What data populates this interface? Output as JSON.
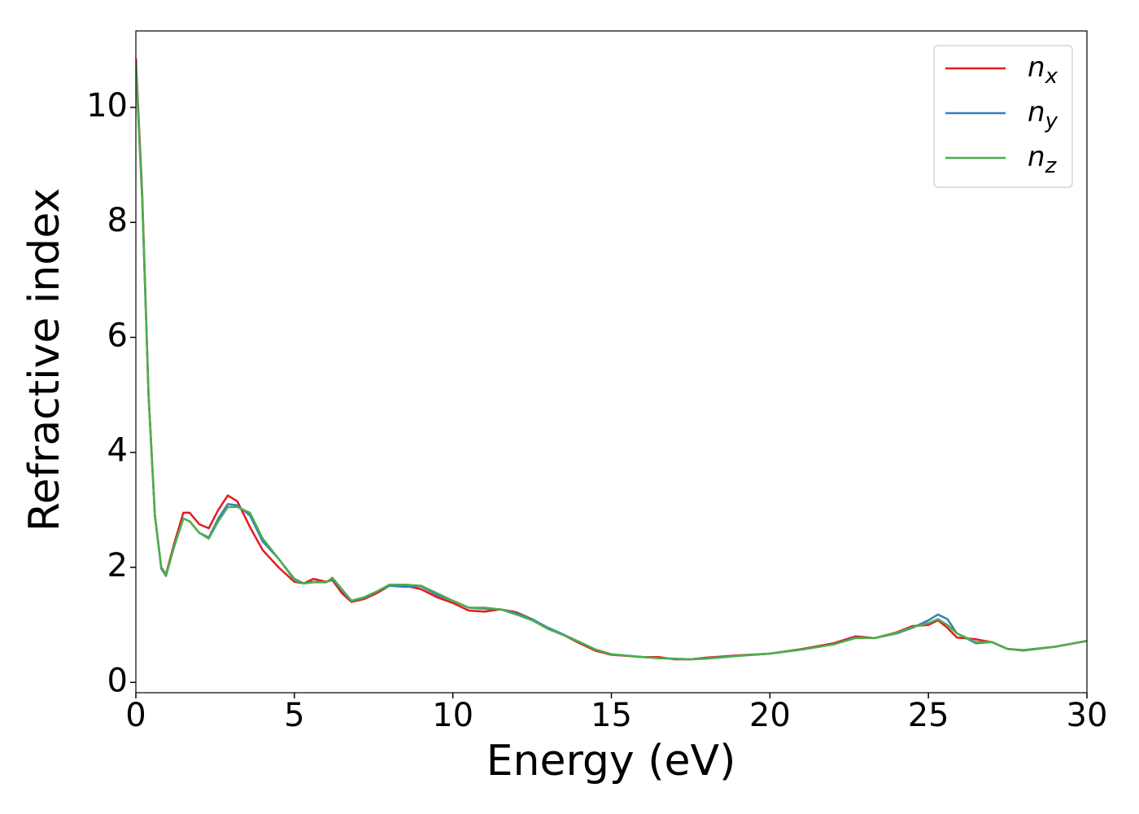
{
  "chart_data": {
    "type": "line",
    "xlabel": "Energy (eV)",
    "ylabel": "Refractive index",
    "x": [
      0,
      0.2,
      0.4,
      0.6,
      0.8,
      0.95,
      1.2,
      1.5,
      1.7,
      2.0,
      2.3,
      2.6,
      2.9,
      3.2,
      3.6,
      4.0,
      4.5,
      5.0,
      5.3,
      5.6,
      6.0,
      6.2,
      6.5,
      6.8,
      7.2,
      7.6,
      8.0,
      8.5,
      9.0,
      9.5,
      10.0,
      10.5,
      11.0,
      11.5,
      12.0,
      12.5,
      13.0,
      13.5,
      14.0,
      14.5,
      15.0,
      16.0,
      16.5,
      17.0,
      17.5,
      18.0,
      19.0,
      20.0,
      21.0,
      22.0,
      22.7,
      23.3,
      24.0,
      24.5,
      25.0,
      25.3,
      25.6,
      25.9,
      26.5,
      27.0,
      27.5,
      28.0,
      29.0,
      30.0
    ],
    "series": [
      {
        "name": "nx",
        "color": "#e41a1c",
        "values": [
          10.85,
          8.5,
          5.0,
          2.9,
          2.0,
          1.88,
          2.4,
          2.95,
          2.95,
          2.75,
          2.68,
          3.0,
          3.25,
          3.15,
          2.7,
          2.3,
          2.0,
          1.75,
          1.72,
          1.8,
          1.75,
          1.78,
          1.55,
          1.4,
          1.45,
          1.55,
          1.68,
          1.68,
          1.62,
          1.48,
          1.38,
          1.25,
          1.23,
          1.27,
          1.22,
          1.1,
          0.93,
          0.82,
          0.68,
          0.55,
          0.48,
          0.44,
          0.44,
          0.4,
          0.4,
          0.43,
          0.47,
          0.5,
          0.58,
          0.68,
          0.8,
          0.77,
          0.87,
          0.98,
          1.0,
          1.08,
          0.95,
          0.78,
          0.75,
          0.7,
          0.58,
          0.56,
          0.62,
          0.72
        ]
      },
      {
        "name": "ny",
        "color": "#377eb8",
        "values": [
          10.75,
          8.4,
          5.0,
          2.9,
          1.98,
          1.85,
          2.35,
          2.85,
          2.8,
          2.6,
          2.52,
          2.85,
          3.1,
          3.08,
          2.9,
          2.45,
          2.15,
          1.8,
          1.72,
          1.75,
          1.74,
          1.8,
          1.6,
          1.42,
          1.47,
          1.58,
          1.68,
          1.66,
          1.67,
          1.52,
          1.42,
          1.3,
          1.28,
          1.27,
          1.2,
          1.1,
          0.95,
          0.83,
          0.7,
          0.57,
          0.49,
          0.44,
          0.42,
          0.41,
          0.4,
          0.42,
          0.46,
          0.5,
          0.57,
          0.66,
          0.78,
          0.77,
          0.85,
          0.95,
          1.08,
          1.18,
          1.1,
          0.85,
          0.68,
          0.7,
          0.58,
          0.56,
          0.62,
          0.72
        ]
      },
      {
        "name": "nz",
        "color": "#4daf4a",
        "values": [
          10.7,
          8.4,
          5.0,
          2.9,
          2.0,
          1.87,
          2.35,
          2.85,
          2.8,
          2.6,
          2.5,
          2.8,
          3.05,
          3.05,
          2.95,
          2.5,
          2.15,
          1.78,
          1.72,
          1.74,
          1.74,
          1.82,
          1.62,
          1.42,
          1.48,
          1.58,
          1.7,
          1.7,
          1.68,
          1.55,
          1.42,
          1.3,
          1.3,
          1.27,
          1.18,
          1.08,
          0.93,
          0.82,
          0.7,
          0.57,
          0.49,
          0.44,
          0.42,
          0.41,
          0.4,
          0.41,
          0.46,
          0.5,
          0.57,
          0.66,
          0.77,
          0.77,
          0.86,
          0.96,
          1.03,
          1.1,
          1.0,
          0.85,
          0.7,
          0.7,
          0.58,
          0.55,
          0.62,
          0.72
        ]
      }
    ],
    "xlim": [
      0,
      30
    ],
    "xticks": [
      0,
      5,
      10,
      15,
      20,
      25,
      30
    ],
    "ylim": [
      -0.18,
      11.33
    ],
    "yticks": [
      0,
      2,
      4,
      6,
      8,
      10
    ],
    "legend": "upper right"
  }
}
